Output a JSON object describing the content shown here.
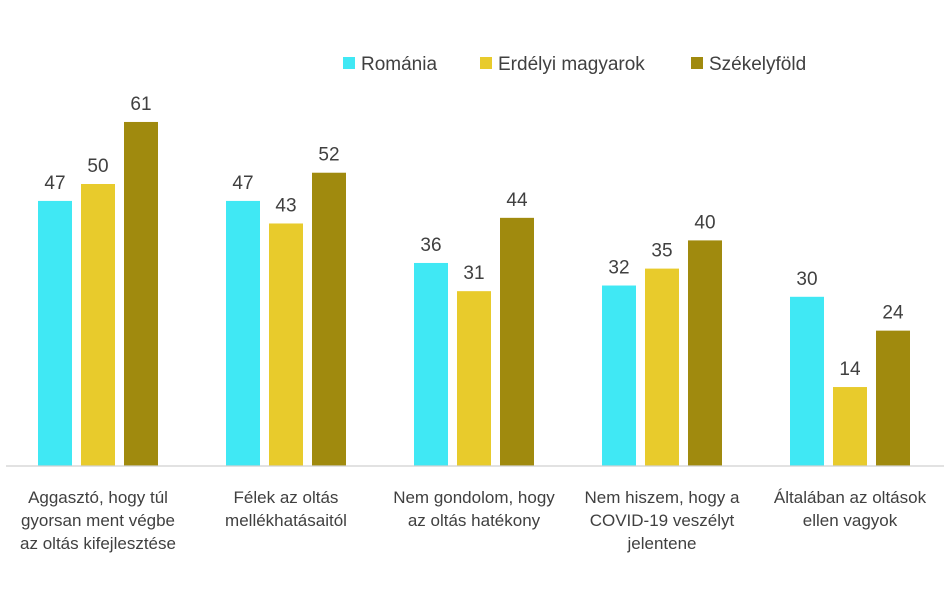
{
  "chart_data": {
    "type": "bar",
    "title": "",
    "xlabel": "",
    "ylabel": "",
    "ylim": [
      0,
      70
    ],
    "grid": false,
    "legend_position": "top-right",
    "categories": [
      [
        "Aggasztó, hogy túl",
        "gyorsan ment végbe",
        "az oltás kifejlesztése"
      ],
      [
        "Félek az oltás",
        "mellékhatásaitól"
      ],
      [
        "Nem gondolom, hogy",
        "az oltás hatékony"
      ],
      [
        "Nem hiszem, hogy a",
        "COVID-19 veszélyt",
        "jelentene"
      ],
      [
        "Általában az oltások",
        "ellen vagyok"
      ]
    ],
    "series": [
      {
        "name": "Románia",
        "color": "#40E8F4",
        "values": [
          47,
          47,
          36,
          32,
          30
        ]
      },
      {
        "name": "Erdélyi magyarok",
        "color": "#E8CB2C",
        "values": [
          50,
          43,
          31,
          35,
          14
        ]
      },
      {
        "name": "Székelyföld",
        "color": "#A08A0E",
        "values": [
          61,
          52,
          44,
          40,
          24
        ]
      }
    ]
  }
}
